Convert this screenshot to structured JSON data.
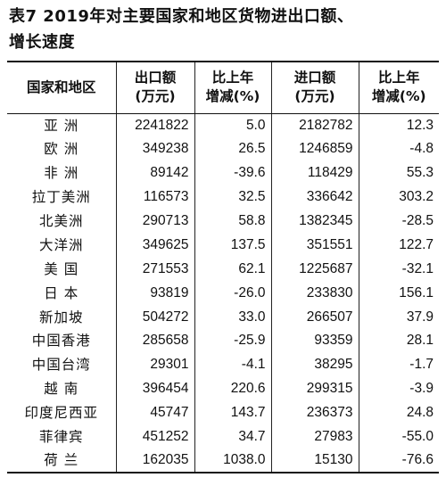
{
  "title_line1": "表7 2019年对主要国家和地区货物进出口额、",
  "title_line2": "增长速度",
  "headers": {
    "region": "国家和地区",
    "export_l1": "出口额",
    "export_l2": "(万元)",
    "export_growth_l1": "比上年",
    "export_growth_l2": "增减(%)",
    "import_l1": "进口额",
    "import_l2": "(万元)",
    "import_growth_l1": "比上年",
    "import_growth_l2": "增减(%)"
  },
  "rows": [
    {
      "region": "亚 洲",
      "export": "2241822",
      "export_growth": "5.0",
      "import": "2182782",
      "import_growth": "12.3"
    },
    {
      "region": "欧 洲",
      "export": "349238",
      "export_growth": "26.5",
      "import": "1246859",
      "import_growth": "-4.8"
    },
    {
      "region": "非 洲",
      "export": "89142",
      "export_growth": "-39.6",
      "import": "118429",
      "import_growth": "55.3"
    },
    {
      "region": "拉丁美洲",
      "export": "116573",
      "export_growth": "32.5",
      "import": "336642",
      "import_growth": "303.2"
    },
    {
      "region": "北美洲",
      "export": "290713",
      "export_growth": "58.8",
      "import": "1382345",
      "import_growth": "-28.5"
    },
    {
      "region": "大洋洲",
      "export": "349625",
      "export_growth": "137.5",
      "import": "351551",
      "import_growth": "122.7"
    },
    {
      "region": "美 国",
      "export": "271553",
      "export_growth": "62.1",
      "import": "1225687",
      "import_growth": "-32.1"
    },
    {
      "region": "日 本",
      "export": "93819",
      "export_growth": "-26.0",
      "import": "233830",
      "import_growth": "156.1"
    },
    {
      "region": "新加坡",
      "export": "504272",
      "export_growth": "33.0",
      "import": "266507",
      "import_growth": "37.9"
    },
    {
      "region": "中国香港",
      "export": "285658",
      "export_growth": "-25.9",
      "import": "93359",
      "import_growth": "28.1"
    },
    {
      "region": "中国台湾",
      "export": "29301",
      "export_growth": "-4.1",
      "import": "38295",
      "import_growth": "-1.7"
    },
    {
      "region": "越 南",
      "export": "396454",
      "export_growth": "220.6",
      "import": "299315",
      "import_growth": "-3.9"
    },
    {
      "region": "印度尼西亚",
      "export": "45747",
      "export_growth": "143.7",
      "import": "236373",
      "import_growth": "24.8"
    },
    {
      "region": "菲律宾",
      "export": "451252",
      "export_growth": "34.7",
      "import": "27983",
      "import_growth": "-55.0"
    },
    {
      "region": "荷 兰",
      "export": "162035",
      "export_growth": "1038.0",
      "import": "15130",
      "import_growth": "-76.6"
    }
  ]
}
